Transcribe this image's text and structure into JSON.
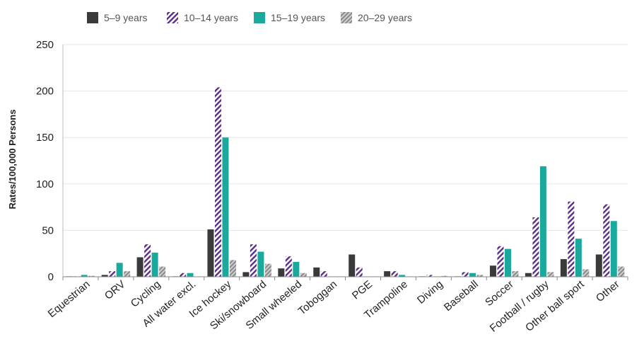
{
  "chart_data": {
    "type": "bar",
    "title": "",
    "xlabel": "",
    "ylabel": "Rates/100,000 Persons",
    "ylim": [
      0,
      250
    ],
    "yticks": [
      "0",
      "50",
      "100",
      "150",
      "200",
      "250"
    ],
    "grid": true,
    "legend_position": "top-left",
    "categories": [
      "Equestrian",
      "ORV",
      "Cycling",
      "All water excl.",
      "Ice hockey",
      "Ski/snowboard",
      "Small wheeled",
      "Toboggan",
      "PGE",
      "Trampoline",
      "Diving",
      "Baseball",
      "Soccer",
      "Football / rugby",
      "Other ball sport",
      "Other"
    ],
    "series": [
      {
        "name": "5–9 years",
        "style": "solid",
        "color": "#3a3a3a",
        "values": [
          0.5,
          2,
          21,
          0.5,
          51,
          5,
          9,
          10,
          24,
          6,
          0.5,
          0.5,
          12,
          4,
          19,
          24
        ]
      },
      {
        "name": "10–14 years",
        "style": "hatch",
        "color": "#5b2d86",
        "values": [
          0.5,
          6,
          35,
          4,
          204,
          35,
          22,
          6,
          10,
          6,
          2,
          5,
          33,
          64,
          81,
          78
        ]
      },
      {
        "name": "15–19 years",
        "style": "solid",
        "color": "#1ba99e",
        "values": [
          2,
          15,
          26,
          4,
          150,
          27,
          16,
          0,
          0,
          2,
          0,
          4,
          30,
          119,
          41,
          60
        ]
      },
      {
        "name": "20–29 years",
        "style": "hatch-gray",
        "color": "#9a9a9a",
        "values": [
          1,
          6,
          11,
          0,
          18,
          14,
          4,
          0,
          0,
          0,
          1,
          2,
          6,
          5,
          8,
          11
        ]
      }
    ]
  }
}
